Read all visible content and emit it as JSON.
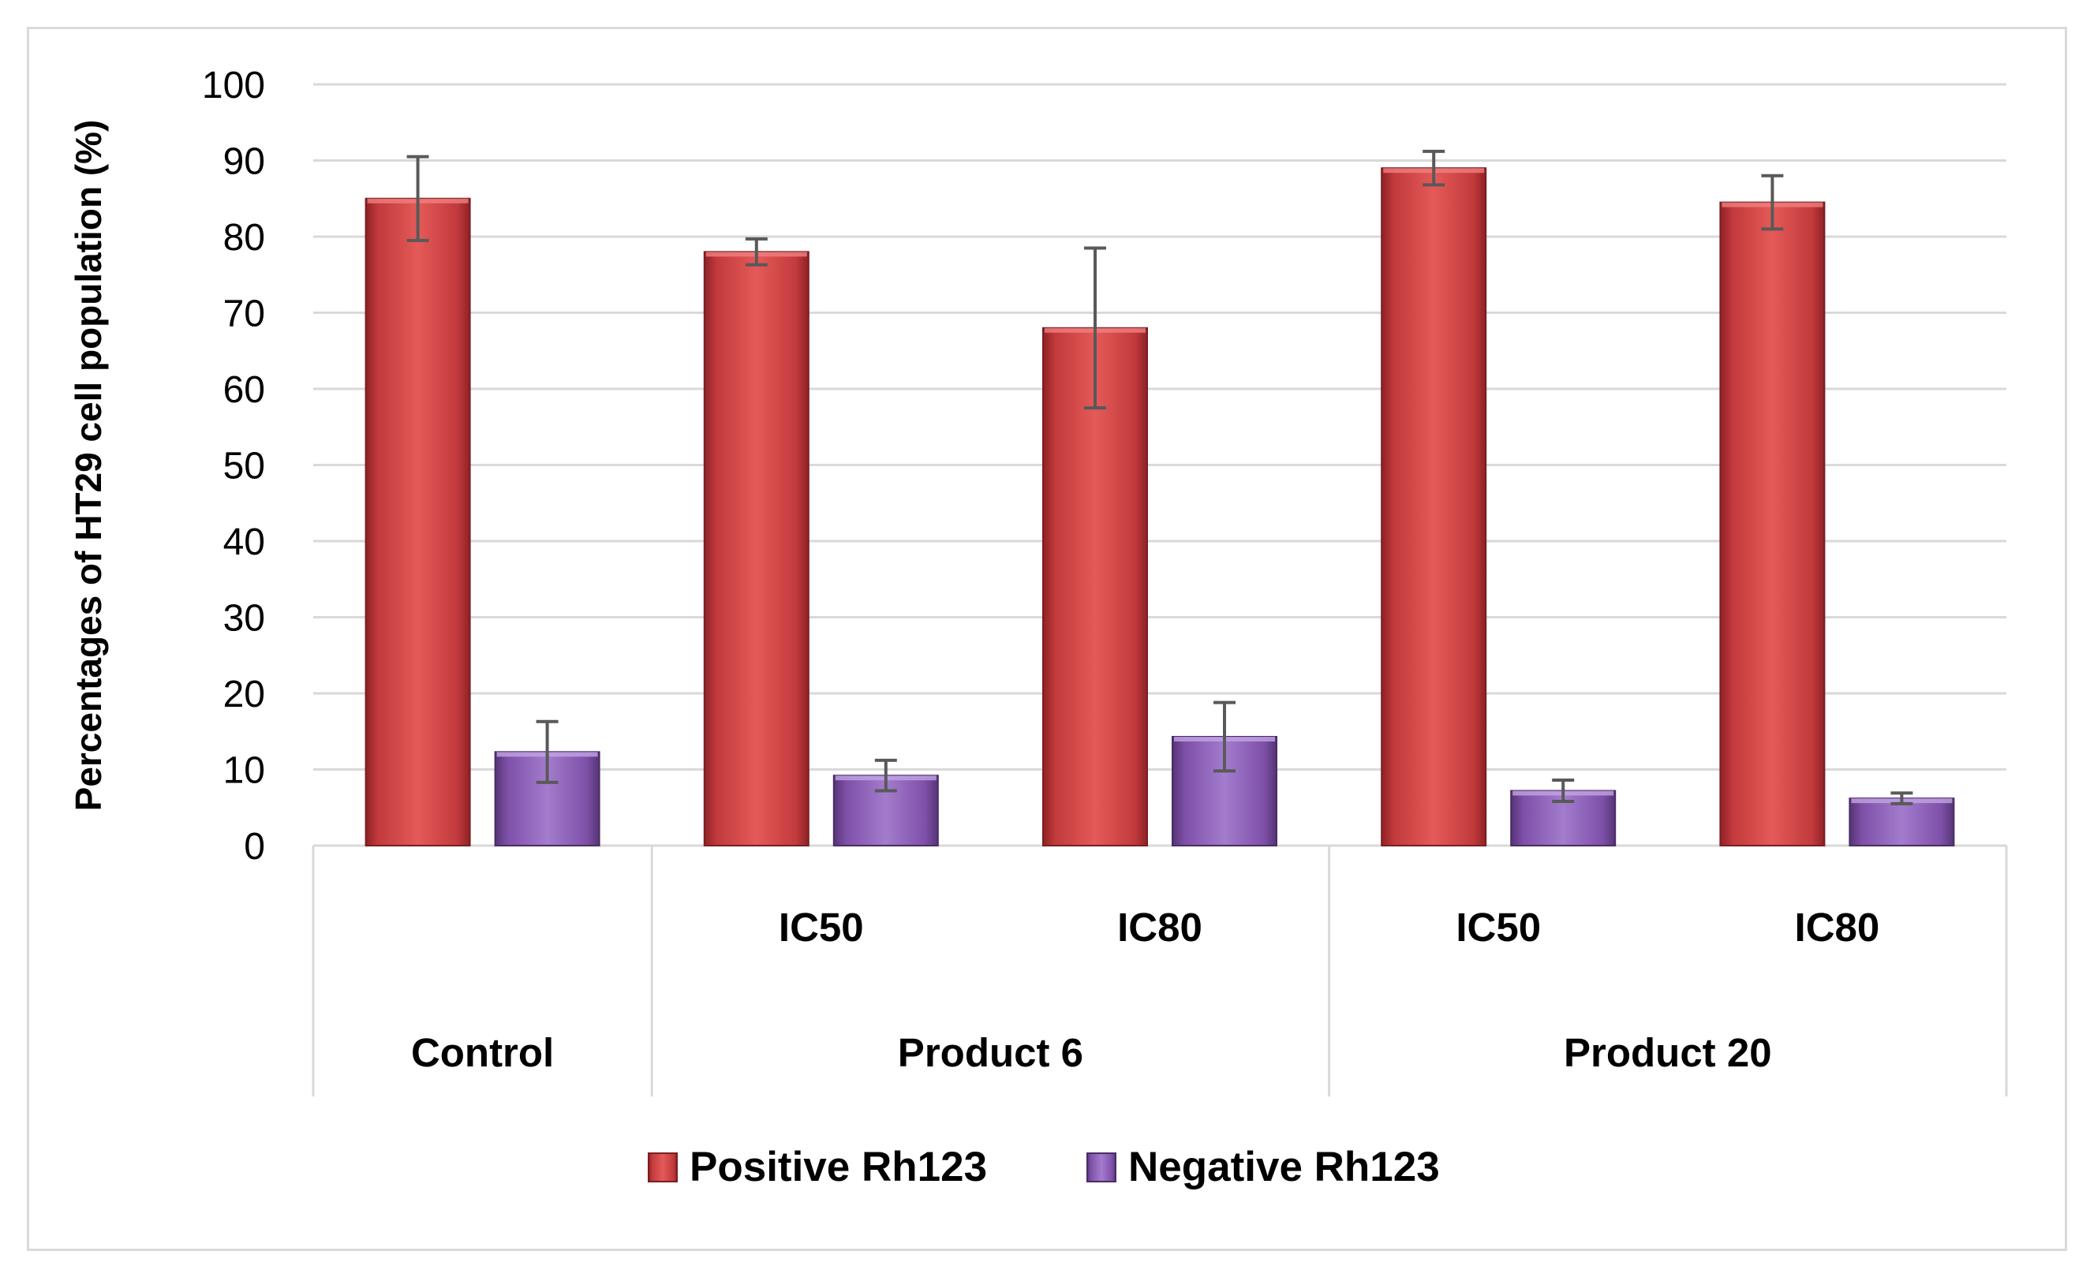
{
  "chart_data": {
    "type": "bar",
    "title": "",
    "xlabel": "",
    "ylabel": "Percentages of  HT29 cell population (%)",
    "ylim": [
      0,
      100
    ],
    "yticks": [
      0,
      10,
      20,
      30,
      40,
      50,
      60,
      70,
      80,
      90,
      100
    ],
    "grid": true,
    "legend_position": "bottom",
    "groups": [
      {
        "label": "Control",
        "subcategories": [
          ""
        ]
      },
      {
        "label": "Product 6",
        "subcategories": [
          "IC50",
          "IC80"
        ]
      },
      {
        "label": "Product 20",
        "subcategories": [
          "IC50",
          "IC80"
        ]
      }
    ],
    "categories": [
      "Control",
      "Product 6 IC50",
      "Product 6 IC80",
      "Product 20 IC50",
      "Product 20 IC80"
    ],
    "series": [
      {
        "name": "Positive Rh123",
        "color": "#c0393b",
        "values": [
          85,
          78,
          68,
          89,
          84.5
        ],
        "errors": [
          5.5,
          1.7,
          10.5,
          2.2,
          3.5
        ]
      },
      {
        "name": "Negative Rh123",
        "color": "#7e4fa6",
        "values": [
          12.3,
          9.2,
          14.3,
          7.2,
          6.2
        ],
        "errors": [
          4,
          2,
          4.5,
          1.4,
          0.7
        ]
      }
    ]
  }
}
